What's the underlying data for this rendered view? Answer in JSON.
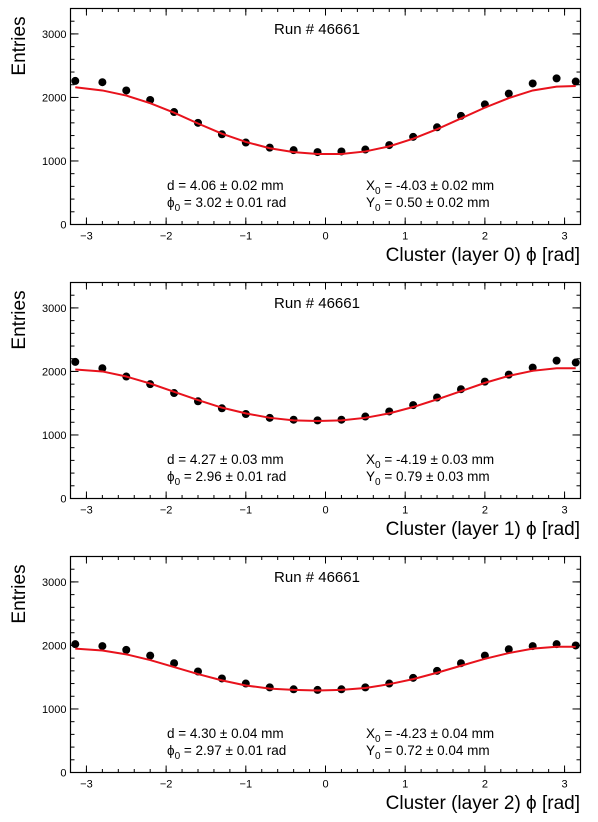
{
  "chart_data": [
    {
      "type": "scatter",
      "title": "Run # 46661",
      "xlabel": "Cluster (layer 0) ϕ [rad]",
      "ylabel": "Entries",
      "xlim": [
        -3.2,
        3.2
      ],
      "ylim": [
        0,
        3400
      ],
      "xticks": [
        -3,
        -2,
        -1,
        0,
        1,
        2,
        3
      ],
      "xtick_labels": [
        "−3",
        "−2",
        "−1",
        "0",
        "1",
        "2",
        "3"
      ],
      "yticks": [
        0,
        1000,
        2000,
        3000
      ],
      "ytick_labels": [
        "0",
        "1000",
        "2000",
        "3000"
      ],
      "grid": false,
      "series": [
        {
          "kind": "data",
          "x": [
            -3.14,
            -2.8,
            -2.5,
            -2.2,
            -1.9,
            -1.6,
            -1.3,
            -1.0,
            -0.7,
            -0.4,
            -0.1,
            0.2,
            0.5,
            0.8,
            1.1,
            1.4,
            1.7,
            2.0,
            2.3,
            2.6,
            2.9,
            3.14
          ],
          "y": [
            2260,
            2240,
            2110,
            1960,
            1770,
            1600,
            1420,
            1290,
            1210,
            1170,
            1140,
            1150,
            1180,
            1250,
            1380,
            1530,
            1710,
            1890,
            2060,
            2220,
            2300,
            2250
          ]
        },
        {
          "kind": "fit",
          "x": [
            -3.14,
            -2.8,
            -2.5,
            -2.2,
            -1.9,
            -1.6,
            -1.3,
            -1.0,
            -0.7,
            -0.4,
            -0.1,
            0.2,
            0.5,
            0.8,
            1.1,
            1.4,
            1.7,
            2.0,
            2.3,
            2.6,
            2.9,
            3.14
          ],
          "y": [
            2160,
            2110,
            2030,
            1910,
            1760,
            1590,
            1430,
            1300,
            1200,
            1140,
            1110,
            1110,
            1150,
            1230,
            1350,
            1500,
            1670,
            1840,
            1990,
            2110,
            2170,
            2180
          ]
        }
      ],
      "annotations": {
        "d": "d = 4.06 ± 0.02 mm",
        "phi0": "ϕ",
        "phi0_sub": "0",
        "phi0_val": " = 3.02 ± 0.01 rad",
        "x0": "X",
        "x0_sub": "0",
        "x0_val": " = -4.03 ± 0.02 mm",
        "y0": "Y",
        "y0_sub": "0",
        "y0_val": " = 0.50 ± 0.02 mm"
      }
    },
    {
      "type": "scatter",
      "title": "Run # 46661",
      "xlabel": "Cluster (layer 1) ϕ [rad]",
      "ylabel": "Entries",
      "xlim": [
        -3.2,
        3.2
      ],
      "ylim": [
        0,
        3400
      ],
      "xticks": [
        -3,
        -2,
        -1,
        0,
        1,
        2,
        3
      ],
      "xtick_labels": [
        "−3",
        "−2",
        "−1",
        "0",
        "1",
        "2",
        "3"
      ],
      "yticks": [
        0,
        1000,
        2000,
        3000
      ],
      "ytick_labels": [
        "0",
        "1000",
        "2000",
        "3000"
      ],
      "grid": false,
      "series": [
        {
          "kind": "data",
          "x": [
            -3.14,
            -2.8,
            -2.5,
            -2.2,
            -1.9,
            -1.6,
            -1.3,
            -1.0,
            -0.7,
            -0.4,
            -0.1,
            0.2,
            0.5,
            0.8,
            1.1,
            1.4,
            1.7,
            2.0,
            2.3,
            2.6,
            2.9,
            3.14
          ],
          "y": [
            2150,
            2050,
            1920,
            1800,
            1660,
            1530,
            1420,
            1330,
            1270,
            1240,
            1230,
            1240,
            1290,
            1370,
            1470,
            1590,
            1720,
            1840,
            1950,
            2060,
            2170,
            2140
          ]
        },
        {
          "kind": "fit",
          "x": [
            -3.14,
            -2.8,
            -2.5,
            -2.2,
            -1.9,
            -1.6,
            -1.3,
            -1.0,
            -0.7,
            -0.4,
            -0.1,
            0.2,
            0.5,
            0.8,
            1.1,
            1.4,
            1.7,
            2.0,
            2.3,
            2.6,
            2.9,
            3.14
          ],
          "y": [
            2030,
            2000,
            1920,
            1810,
            1680,
            1550,
            1430,
            1340,
            1270,
            1230,
            1220,
            1230,
            1270,
            1340,
            1440,
            1560,
            1690,
            1820,
            1930,
            2010,
            2050,
            2050
          ]
        }
      ],
      "annotations": {
        "d": "d = 4.27 ± 0.03 mm",
        "phi0": "ϕ",
        "phi0_sub": "0",
        "phi0_val": " = 2.96 ± 0.01 rad",
        "x0": "X",
        "x0_sub": "0",
        "x0_val": " = -4.19 ± 0.03 mm",
        "y0": "Y",
        "y0_sub": "0",
        "y0_val": " = 0.79 ± 0.03 mm"
      }
    },
    {
      "type": "scatter",
      "title": "Run # 46661",
      "xlabel": "Cluster (layer 2) ϕ [rad]",
      "ylabel": "Entries",
      "xlim": [
        -3.2,
        3.2
      ],
      "ylim": [
        0,
        3400
      ],
      "xticks": [
        -3,
        -2,
        -1,
        0,
        1,
        2,
        3
      ],
      "xtick_labels": [
        "−3",
        "−2",
        "−1",
        "0",
        "1",
        "2",
        "3"
      ],
      "yticks": [
        0,
        1000,
        2000,
        3000
      ],
      "ytick_labels": [
        "0",
        "1000",
        "2000",
        "3000"
      ],
      "grid": false,
      "series": [
        {
          "kind": "data",
          "x": [
            -3.14,
            -2.8,
            -2.5,
            -2.2,
            -1.9,
            -1.6,
            -1.3,
            -1.0,
            -0.7,
            -0.4,
            -0.1,
            0.2,
            0.5,
            0.8,
            1.1,
            1.4,
            1.7,
            2.0,
            2.3,
            2.6,
            2.9,
            3.14
          ],
          "y": [
            2020,
            1990,
            1930,
            1840,
            1720,
            1590,
            1480,
            1400,
            1340,
            1310,
            1300,
            1310,
            1340,
            1400,
            1490,
            1600,
            1720,
            1840,
            1940,
            1990,
            2020,
            2000
          ]
        },
        {
          "kind": "fit",
          "x": [
            -3.14,
            -2.8,
            -2.5,
            -2.2,
            -1.9,
            -1.6,
            -1.3,
            -1.0,
            -0.7,
            -0.4,
            -0.1,
            0.2,
            0.5,
            0.8,
            1.1,
            1.4,
            1.7,
            2.0,
            2.3,
            2.6,
            2.9,
            3.14
          ],
          "y": [
            1950,
            1920,
            1860,
            1770,
            1660,
            1550,
            1450,
            1370,
            1320,
            1300,
            1290,
            1300,
            1330,
            1390,
            1470,
            1570,
            1680,
            1790,
            1880,
            1950,
            1980,
            1980
          ]
        }
      ],
      "annotations": {
        "d": "d = 4.30 ± 0.04 mm",
        "phi0": "ϕ",
        "phi0_sub": "0",
        "phi0_val": " = 2.97 ± 0.01 rad",
        "x0": "X",
        "x0_sub": "0",
        "x0_val": " = -4.23 ± 0.04 mm",
        "y0": "Y",
        "y0_sub": "0",
        "y0_val": " = 0.72 ± 0.04 mm"
      }
    }
  ],
  "colors": {
    "points": "#000000",
    "fit": "#e8121c",
    "axis": "#000000",
    "background": "#ffffff"
  }
}
